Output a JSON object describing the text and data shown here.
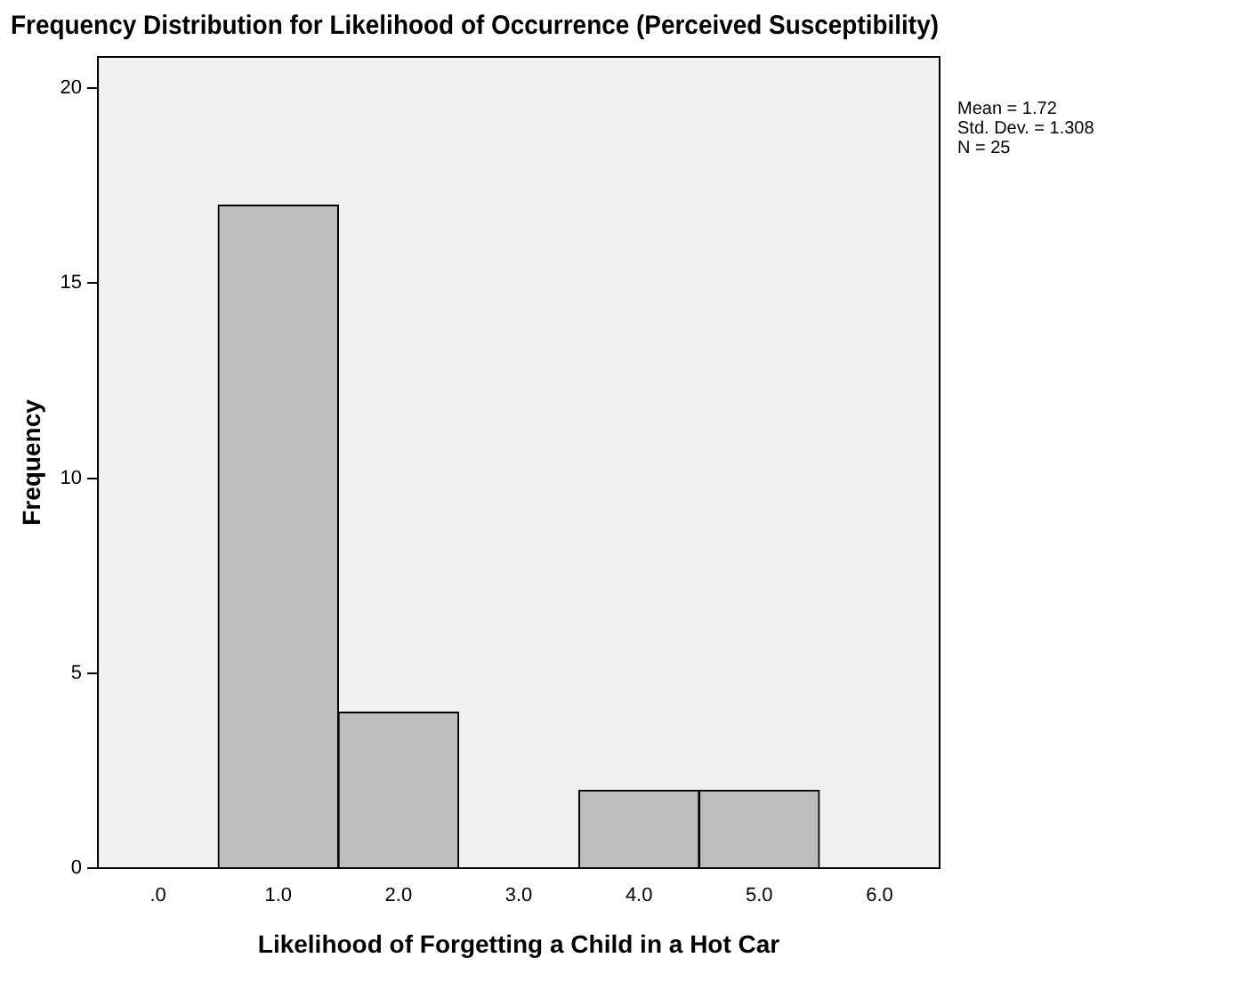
{
  "chart_data": {
    "type": "histogram",
    "title": "Frequency Distribution for Likelihood of Occurrence (Perceived Susceptibility)",
    "xlabel": "Likelihood of Forgetting a Child in a Hot Car",
    "ylabel": "Frequency",
    "bins": [
      0.5,
      1.5,
      2.5,
      3.5,
      4.5,
      5.5
    ],
    "values": [
      17,
      4,
      0,
      2,
      2
    ],
    "color": "#bdbdbd",
    "xlim": [
      -0.5,
      6.5
    ],
    "xticks": [
      {
        "value": 0,
        "label": ".0"
      },
      {
        "value": 1,
        "label": "1.0"
      },
      {
        "value": 2,
        "label": "2.0"
      },
      {
        "value": 3,
        "label": "3.0"
      },
      {
        "value": 4,
        "label": "4.0"
      },
      {
        "value": 5,
        "label": "5.0"
      },
      {
        "value": 6,
        "label": "6.0"
      }
    ],
    "ylim": [
      0,
      20.8
    ],
    "yticks": [
      0,
      5,
      10,
      15,
      20
    ],
    "grid": false,
    "legend": false,
    "annotations": [
      "Mean = 1.72",
      "Std. Dev. = 1.308",
      "N = 25"
    ]
  }
}
